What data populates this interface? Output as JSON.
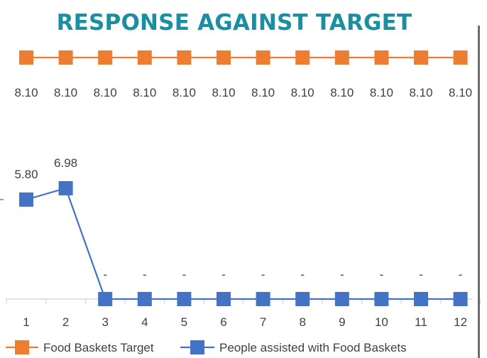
{
  "chart_data": {
    "type": "line",
    "title": "RESPONSE AGAINST TARGET",
    "categories": [
      "1",
      "2",
      "3",
      "4",
      "5",
      "6",
      "7",
      "8",
      "9",
      "10",
      "11",
      "12"
    ],
    "series": [
      {
        "name": "Food Baskets Target",
        "color": "#ed7d31",
        "marker": "square",
        "values": [
          8.1,
          8.1,
          8.1,
          8.1,
          8.1,
          8.1,
          8.1,
          8.1,
          8.1,
          8.1,
          8.1,
          8.1
        ],
        "labels": [
          "8.10",
          "8.10",
          "8.10",
          "8.10",
          "8.10",
          "8.10",
          "8.10",
          "8.10",
          "8.10",
          "8.10",
          "8.10",
          "8.10"
        ]
      },
      {
        "name": "People assisted with Food Baskets",
        "color": "#4472c4",
        "marker": "square",
        "values": [
          5.8,
          6.98,
          0,
          0,
          0,
          0,
          0,
          0,
          0,
          0,
          0,
          0
        ],
        "labels": [
          "5.80",
          "6.98",
          "-",
          "-",
          "-",
          "-",
          "-",
          "-",
          "-",
          "-",
          "-",
          "-"
        ]
      }
    ],
    "legend_position": "bottom",
    "grid": false
  }
}
